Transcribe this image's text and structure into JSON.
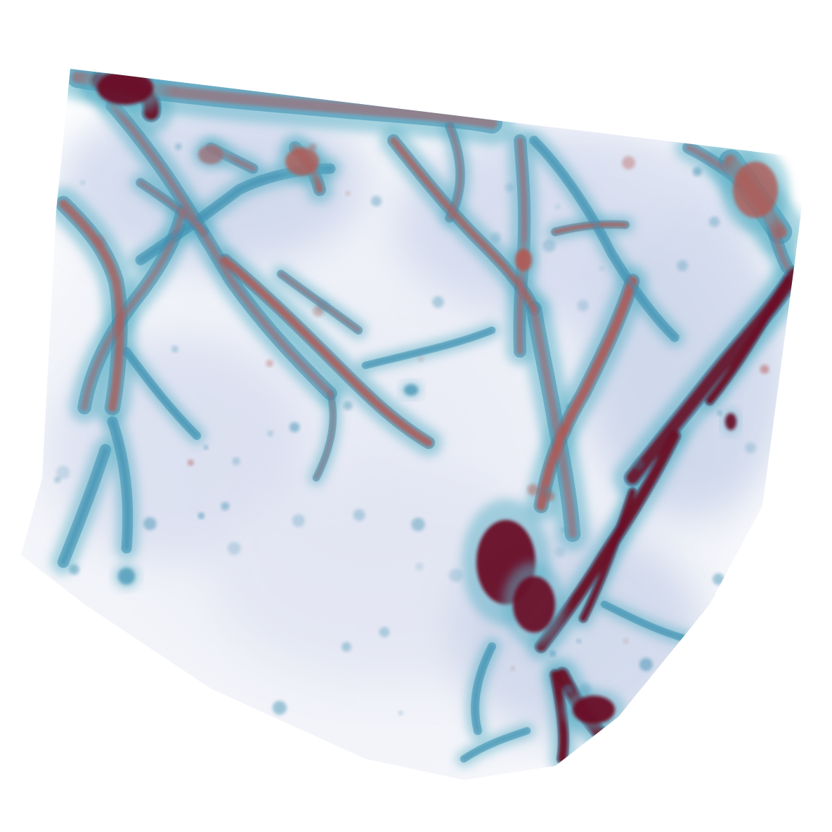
{
  "image": {
    "subject": "volume-rendering",
    "background_color": "#ffffff",
    "palette": {
      "low": "#eef0f8",
      "haze": "#c8d4ea",
      "mid": "#5fb2c8",
      "edge": "#3d8fb0",
      "warm": "#b5564f",
      "high": "#6b0f25"
    }
  }
}
